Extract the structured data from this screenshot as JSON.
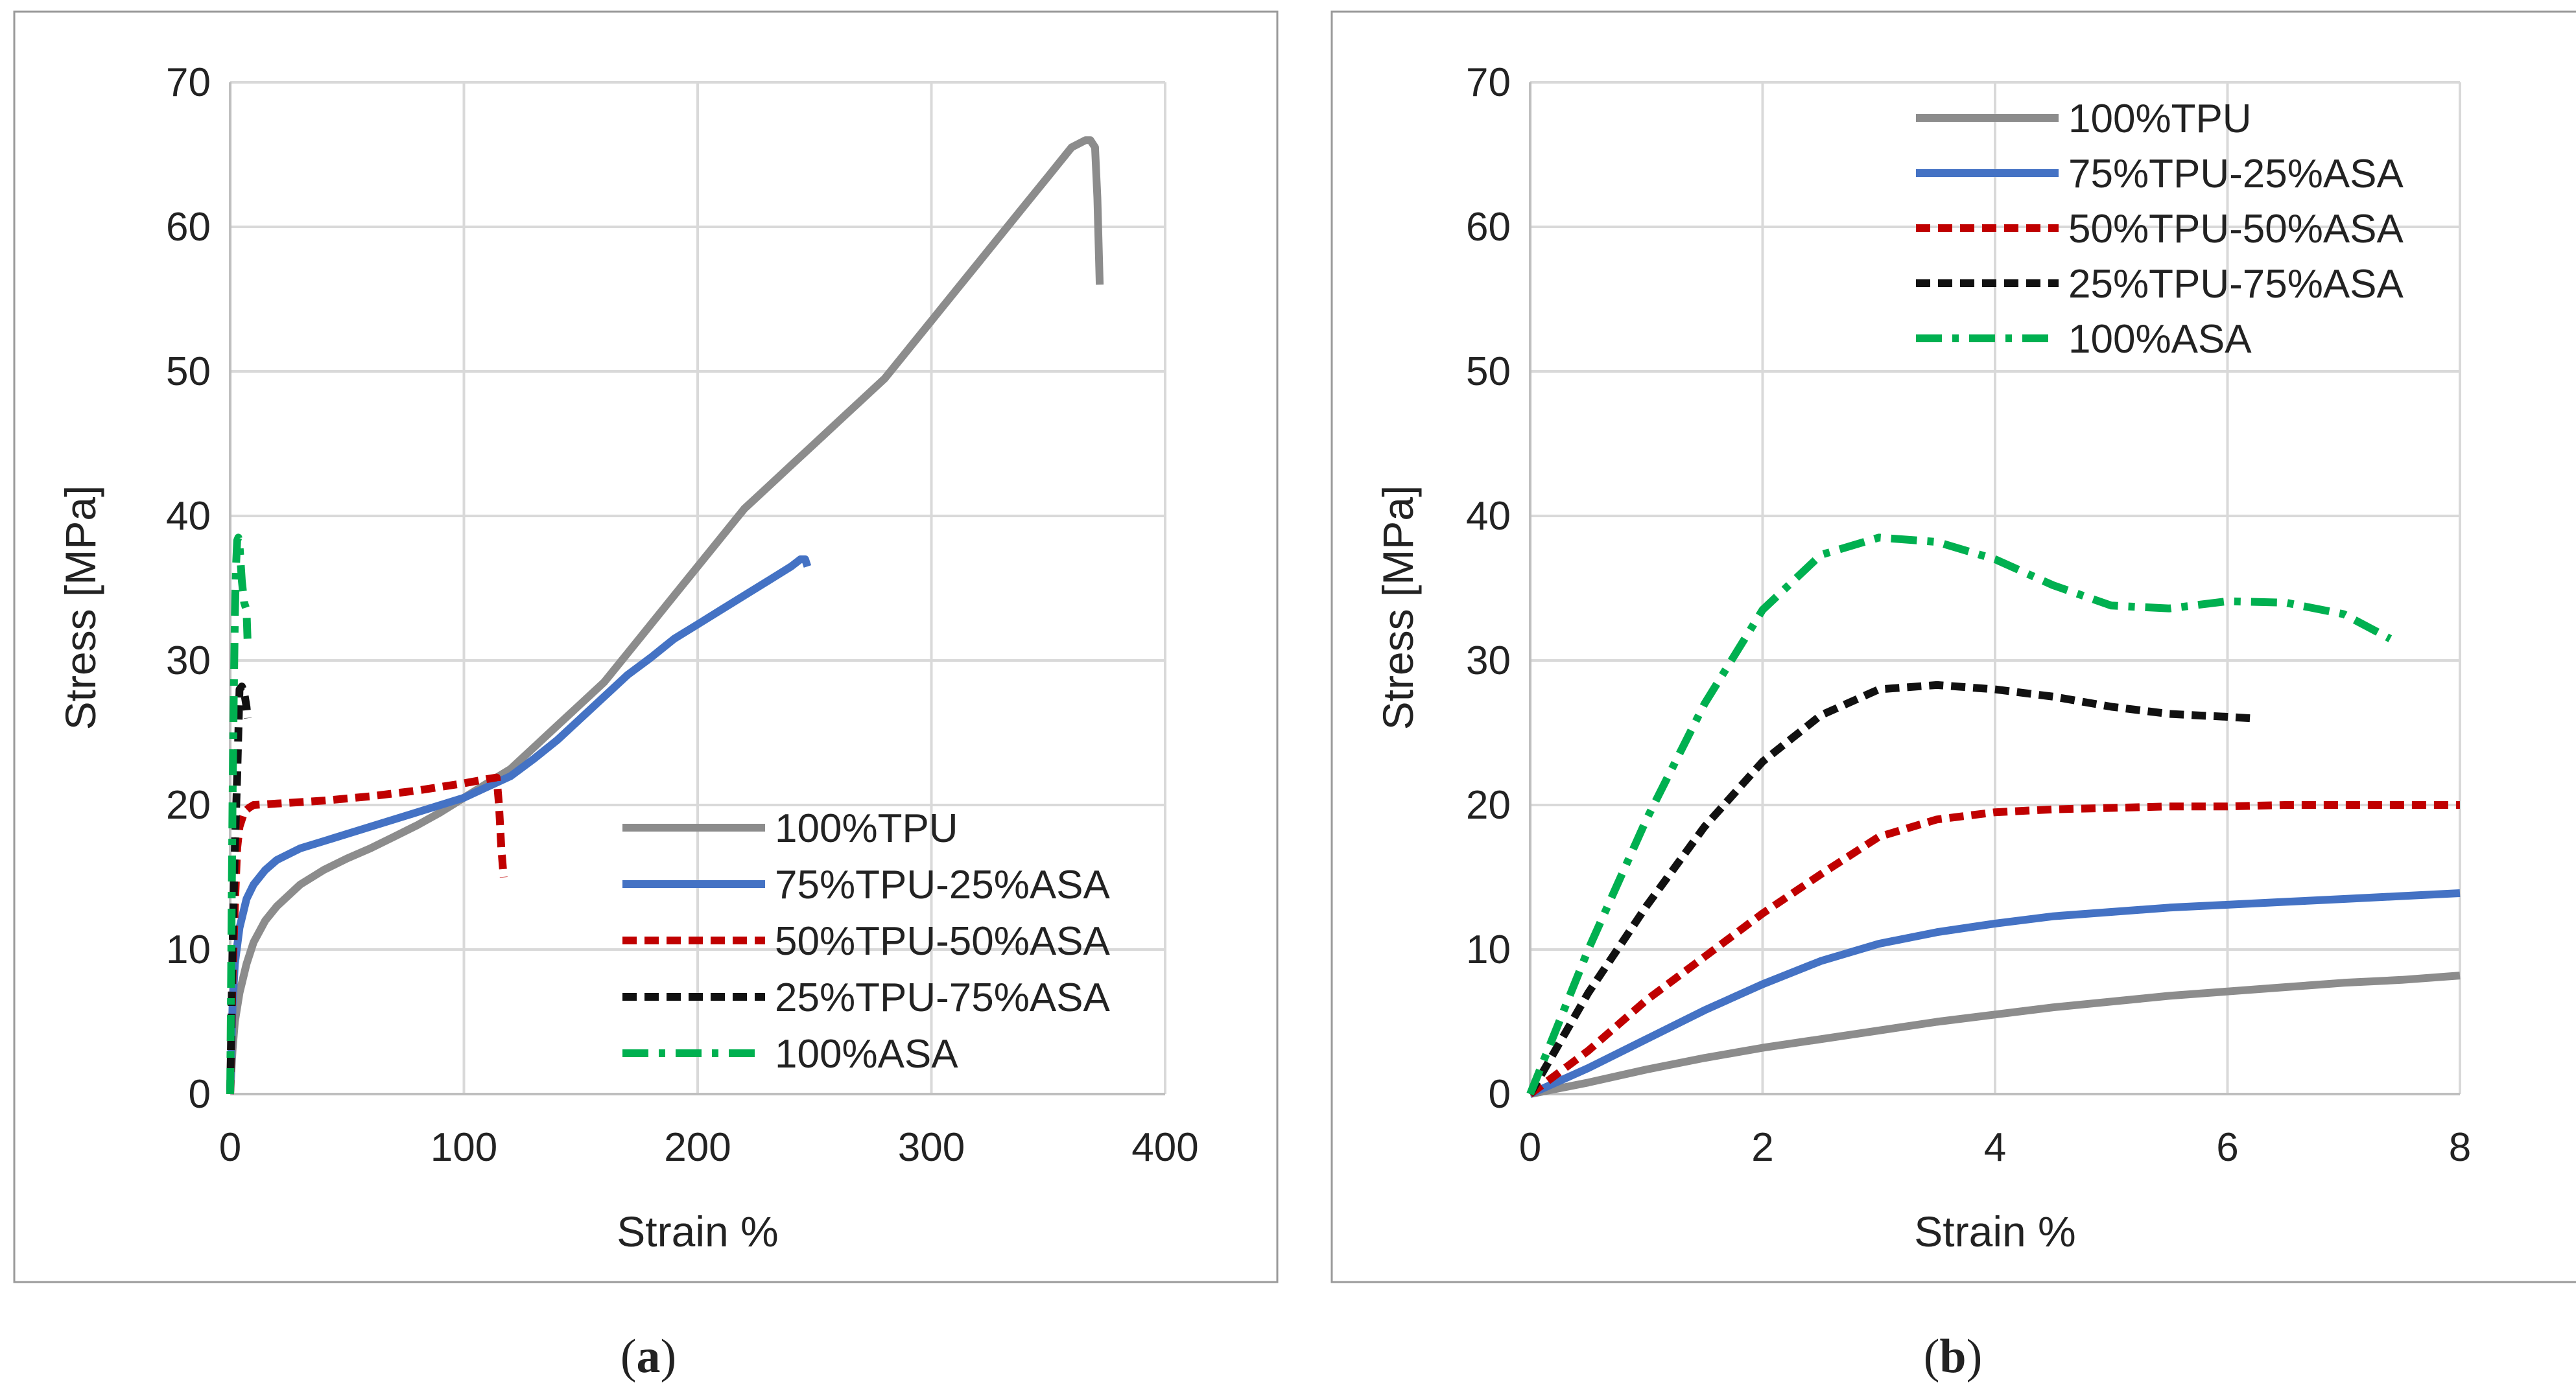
{
  "chart_data": [
    {
      "type": "line",
      "panel": "a",
      "caption_letter": "a",
      "xlabel": "Strain %",
      "ylabel": "Stress [MPa]",
      "xlim": [
        0,
        400
      ],
      "ylim": [
        0,
        70
      ],
      "xticks": [
        0,
        100,
        200,
        300,
        400
      ],
      "yticks": [
        0,
        10,
        20,
        30,
        40,
        50,
        60,
        70
      ],
      "grid": true,
      "legend_position": "bottom-right",
      "series": [
        {
          "name": "100%TPU",
          "color": "#8c8c8c",
          "style": "solid",
          "x": [
            0,
            1,
            2,
            4,
            7,
            10,
            15,
            20,
            30,
            40,
            50,
            60,
            70,
            80,
            90,
            100,
            110,
            120,
            130,
            140,
            150,
            160,
            170,
            180,
            190,
            200,
            210,
            220,
            230,
            240,
            250,
            260,
            270,
            280,
            290,
            300,
            310,
            320,
            330,
            340,
            350,
            360,
            366,
            368,
            370,
            371,
            372
          ],
          "y": [
            0,
            3,
            5,
            7,
            9,
            10.5,
            12,
            13,
            14.5,
            15.5,
            16.3,
            17,
            17.8,
            18.6,
            19.5,
            20.5,
            21.5,
            22.5,
            24,
            25.5,
            27,
            28.5,
            30.5,
            32.5,
            34.5,
            36.5,
            38.5,
            40.5,
            42,
            43.5,
            45,
            46.5,
            48,
            49.5,
            51.5,
            53.5,
            55.5,
            57.5,
            59.5,
            61.5,
            63.5,
            65.5,
            66,
            66,
            65.5,
            62,
            56
          ]
        },
        {
          "name": "75%TPU-25%ASA",
          "color": "#4472c4",
          "style": "solid",
          "x": [
            0,
            1,
            2,
            4,
            7,
            10,
            15,
            20,
            30,
            40,
            50,
            60,
            80,
            100,
            120,
            130,
            140,
            150,
            160,
            170,
            180,
            190,
            200,
            210,
            220,
            230,
            240,
            244,
            246,
            247
          ],
          "y": [
            0,
            6,
            9,
            11.5,
            13.5,
            14.5,
            15.5,
            16.2,
            17,
            17.5,
            18,
            18.5,
            19.5,
            20.5,
            22,
            23.2,
            24.5,
            26,
            27.5,
            29,
            30.2,
            31.5,
            32.5,
            33.5,
            34.5,
            35.5,
            36.5,
            37,
            37,
            36.5
          ]
        },
        {
          "name": "50%TPU-50%ASA",
          "color": "#c00000",
          "style": "dashed",
          "x": [
            0,
            1,
            2,
            3,
            4,
            6,
            8,
            10,
            20,
            40,
            60,
            80,
            100,
            110,
            114,
            115,
            116,
            117
          ],
          "y": [
            0,
            8,
            13,
            17,
            18.5,
            19.5,
            19.8,
            20,
            20.1,
            20.3,
            20.6,
            21,
            21.5,
            21.8,
            21.9,
            20,
            17,
            15
          ]
        },
        {
          "name": "25%TPU-75%ASA",
          "color": "#111111",
          "style": "dashed",
          "x": [
            0,
            1,
            2,
            3,
            3.5,
            4,
            5,
            6,
            7,
            7.5
          ],
          "y": [
            0,
            10,
            17,
            22,
            25,
            28,
            28.2,
            27.8,
            26.8,
            26
          ]
        },
        {
          "name": "100%ASA",
          "color": "#00b050",
          "style": "dashdot",
          "x": [
            0,
            0.5,
            1,
            1.5,
            2,
            2.5,
            3,
            3.5,
            4,
            5,
            6,
            7,
            7.4
          ],
          "y": [
            0,
            10,
            20,
            27,
            33,
            36.5,
            38.3,
            38.5,
            38,
            35.5,
            34,
            33.5,
            31.5
          ]
        }
      ]
    },
    {
      "type": "line",
      "panel": "b",
      "caption_letter": "b",
      "xlabel": "Strain %",
      "ylabel": "Stress [MPa]",
      "xlim": [
        0,
        8
      ],
      "ylim": [
        0,
        70
      ],
      "xticks": [
        0,
        2,
        4,
        6,
        8
      ],
      "yticks": [
        0,
        10,
        20,
        30,
        40,
        50,
        60,
        70
      ],
      "grid": true,
      "legend_position": "top",
      "series": [
        {
          "name": "100%TPU",
          "color": "#8c8c8c",
          "style": "solid",
          "x": [
            0,
            0.5,
            1,
            1.5,
            2,
            2.5,
            3,
            3.5,
            4,
            4.5,
            5,
            5.5,
            6,
            6.5,
            7,
            7.5,
            8
          ],
          "y": [
            0,
            0.8,
            1.7,
            2.5,
            3.2,
            3.8,
            4.4,
            5,
            5.5,
            6,
            6.4,
            6.8,
            7.1,
            7.4,
            7.7,
            7.9,
            8.2
          ]
        },
        {
          "name": "75%TPU-25%ASA",
          "color": "#4472c4",
          "style": "solid",
          "x": [
            0,
            0.5,
            1,
            1.5,
            2,
            2.5,
            3,
            3.5,
            4,
            4.5,
            5,
            5.5,
            6,
            6.5,
            7,
            7.5,
            8
          ],
          "y": [
            0,
            1.8,
            3.8,
            5.8,
            7.6,
            9.2,
            10.4,
            11.2,
            11.8,
            12.3,
            12.6,
            12.9,
            13.1,
            13.3,
            13.5,
            13.7,
            13.9
          ]
        },
        {
          "name": "50%TPU-50%ASA",
          "color": "#c00000",
          "style": "dashed",
          "x": [
            0,
            0.5,
            1,
            1.5,
            2,
            2.5,
            3,
            3.5,
            4,
            4.5,
            5,
            5.5,
            6,
            6.5,
            7,
            7.5,
            8
          ],
          "y": [
            0,
            3,
            6.5,
            9.5,
            12.5,
            15.2,
            17.8,
            19,
            19.5,
            19.7,
            19.8,
            19.9,
            19.9,
            20,
            20,
            20,
            20
          ]
        },
        {
          "name": "25%TPU-75%ASA",
          "color": "#111111",
          "style": "dashed",
          "x": [
            0,
            0.5,
            1,
            1.5,
            2,
            2.5,
            3,
            3.5,
            4,
            4.5,
            5,
            5.5,
            6,
            6.2
          ],
          "y": [
            0,
            7,
            13,
            18.5,
            23,
            26.2,
            28,
            28.3,
            28,
            27.5,
            26.8,
            26.3,
            26.1,
            26
          ]
        },
        {
          "name": "100%ASA",
          "color": "#00b050",
          "style": "dashdot",
          "x": [
            0,
            0.5,
            1,
            1.5,
            2,
            2.5,
            3,
            3.5,
            4,
            4.5,
            5,
            5.5,
            6,
            6.5,
            7,
            7.4
          ],
          "y": [
            0,
            10,
            19,
            27,
            33.5,
            37.3,
            38.5,
            38.2,
            37,
            35.2,
            33.8,
            33.6,
            34.1,
            34,
            33.2,
            31.5
          ]
        }
      ]
    }
  ]
}
